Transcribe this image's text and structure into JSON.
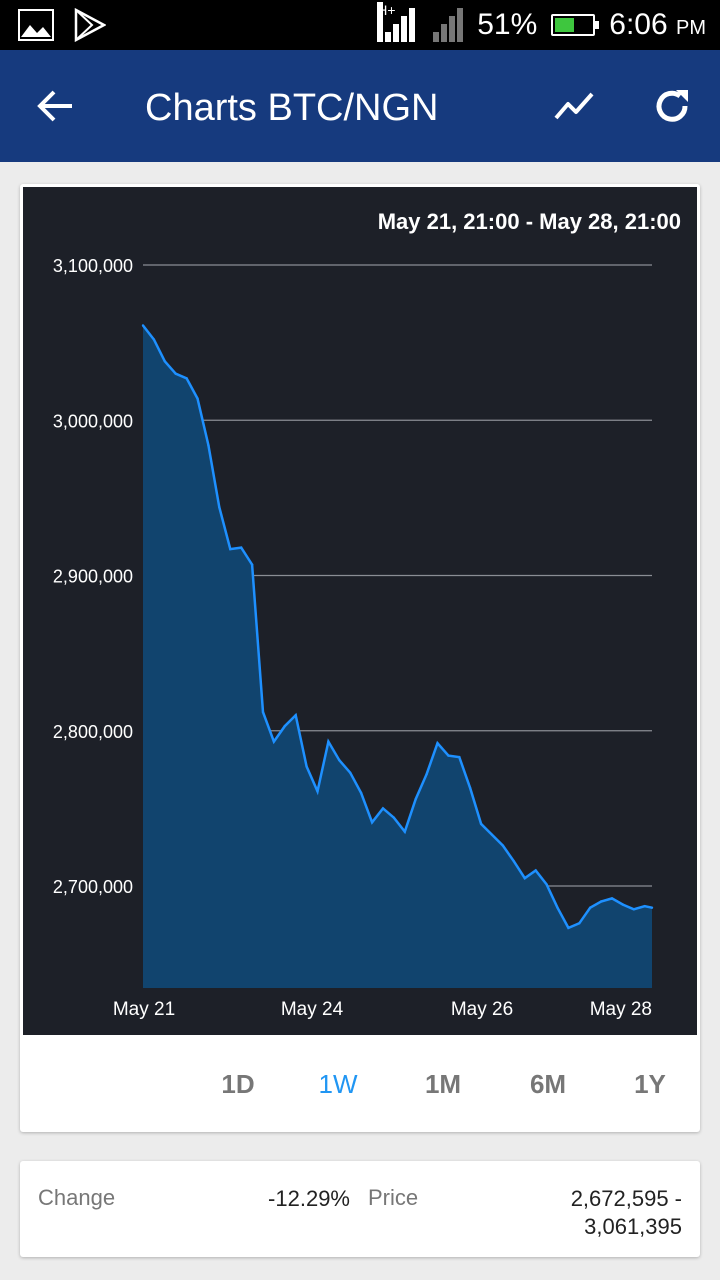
{
  "status_bar": {
    "network_type": "H+",
    "battery_percent": "51%",
    "battery_level": 0.51,
    "time": "6:06",
    "ampm": "PM",
    "icons": [
      "gallery-icon",
      "play-store-icon",
      "signal-icon",
      "battery-icon"
    ]
  },
  "app_bar": {
    "title": "Charts BTC/NGN",
    "icons": [
      "back-arrow-icon",
      "trend-line-icon",
      "refresh-icon"
    ]
  },
  "chart": {
    "range_label": "May 21, 21:00 - May 28, 21:00",
    "y_ticks": [
      "3,100,000",
      "3,000,000",
      "2,900,000",
      "2,800,000",
      "2,700,000"
    ],
    "x_ticks": [
      "May 21",
      "May 24",
      "May 26",
      "May 28"
    ],
    "line_color": "#1e90ff",
    "fill_color": "#11446e"
  },
  "chart_data": {
    "type": "area",
    "title": "",
    "xlabel": "",
    "ylabel": "",
    "x_range": [
      "May 21, 21:00",
      "May 28, 21:00"
    ],
    "x_days": [
      0,
      0.15,
      0.3,
      0.45,
      0.6,
      0.75,
      0.9,
      1.05,
      1.2,
      1.35,
      1.5,
      1.65,
      1.8,
      1.95,
      2.1,
      2.25,
      2.4,
      2.55,
      2.7,
      2.85,
      3.0,
      3.15,
      3.3,
      3.45,
      3.6,
      3.75,
      3.9,
      4.05,
      4.2,
      4.35,
      4.5,
      4.65,
      4.8,
      4.95,
      5.1,
      5.25,
      5.4,
      5.55,
      5.7,
      5.85,
      6.0,
      6.15,
      6.3,
      6.45,
      6.6,
      6.75,
      6.9,
      7.0
    ],
    "values": [
      3061000,
      3052000,
      3038000,
      3030000,
      3027000,
      3014000,
      2984000,
      2944000,
      2917000,
      2918000,
      2907000,
      2812000,
      2793000,
      2803000,
      2810000,
      2777000,
      2761000,
      2793000,
      2781000,
      2773000,
      2760000,
      2741000,
      2750000,
      2744000,
      2735000,
      2756000,
      2772000,
      2792000,
      2784000,
      2783000,
      2763000,
      2740000,
      2733000,
      2726000,
      2716000,
      2705000,
      2710000,
      2701000,
      2686000,
      2673000,
      2676000,
      2686000,
      2690000,
      2692000,
      2688000,
      2685000,
      2687000,
      2686000
    ],
    "ylim": [
      2635000,
      3110000
    ],
    "y_ticks": [
      2700000,
      2800000,
      2900000,
      3000000,
      3100000
    ],
    "grid": true
  },
  "periods": [
    {
      "label": "1D",
      "active": false
    },
    {
      "label": "1W",
      "active": true
    },
    {
      "label": "1M",
      "active": false
    },
    {
      "label": "6M",
      "active": false
    },
    {
      "label": "1Y",
      "active": false
    }
  ],
  "info": {
    "change_label": "Change",
    "change_value": "-12.29%",
    "price_label": "Price",
    "price_line1": "2,672,595 -",
    "price_line2": "3,061,395"
  }
}
